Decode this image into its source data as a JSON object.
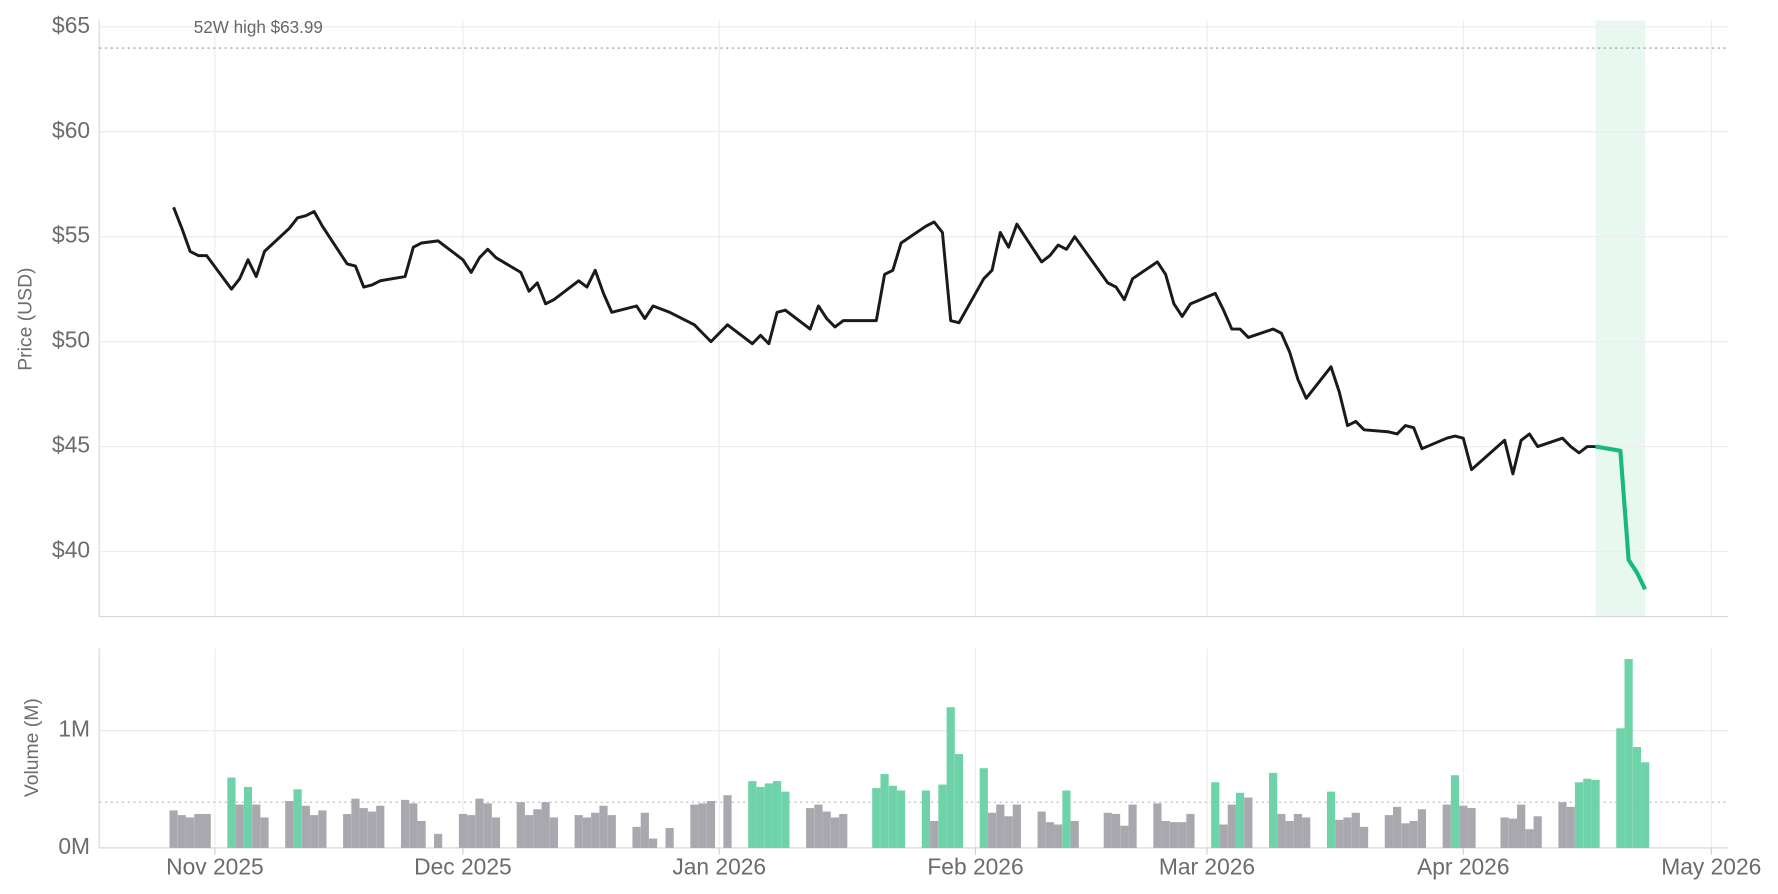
{
  "chart_data": [
    {
      "type": "line",
      "y_label": "Price (USD)",
      "xlim": [
        "2025-10-18",
        "2026-05-03"
      ],
      "ylim": [
        36.9,
        65.3
      ],
      "yticks": [
        {
          "value": 40,
          "label": "$40"
        },
        {
          "value": 45,
          "label": "$45"
        },
        {
          "value": 50,
          "label": "$50"
        },
        {
          "value": 55,
          "label": "$55"
        },
        {
          "value": 60,
          "label": "$60"
        },
        {
          "value": 65,
          "label": "$65"
        }
      ],
      "grid": true,
      "reference_line": {
        "value": 63.99,
        "label": "52W high $63.99"
      },
      "highlight": {
        "start": "2026-04-17",
        "end": "2026-04-23",
        "color": "#17b97f",
        "band_color": "#e9f7f1"
      },
      "x": [
        "2025-10-27",
        "2025-10-28",
        "2025-10-29",
        "2025-10-30",
        "2025-10-31",
        "2025-11-03",
        "2025-11-04",
        "2025-11-05",
        "2025-11-06",
        "2025-11-07",
        "2025-11-10",
        "2025-11-11",
        "2025-11-12",
        "2025-11-13",
        "2025-11-14",
        "2025-11-17",
        "2025-11-18",
        "2025-11-19",
        "2025-11-20",
        "2025-11-21",
        "2025-11-24",
        "2025-11-25",
        "2025-11-26",
        "2025-11-28",
        "2025-12-01",
        "2025-12-02",
        "2025-12-03",
        "2025-12-04",
        "2025-12-05",
        "2025-12-08",
        "2025-12-09",
        "2025-12-10",
        "2025-12-11",
        "2025-12-12",
        "2025-12-15",
        "2025-12-16",
        "2025-12-17",
        "2025-12-18",
        "2025-12-19",
        "2025-12-22",
        "2025-12-23",
        "2025-12-24",
        "2025-12-26",
        "2025-12-29",
        "2025-12-30",
        "2025-12-31",
        "2026-01-02",
        "2026-01-05",
        "2026-01-06",
        "2026-01-07",
        "2026-01-08",
        "2026-01-09",
        "2026-01-12",
        "2026-01-13",
        "2026-01-14",
        "2026-01-15",
        "2026-01-16",
        "2026-01-20",
        "2026-01-21",
        "2026-01-22",
        "2026-01-23",
        "2026-01-26",
        "2026-01-27",
        "2026-01-28",
        "2026-01-29",
        "2026-01-30",
        "2026-02-02",
        "2026-02-03",
        "2026-02-04",
        "2026-02-05",
        "2026-02-06",
        "2026-02-09",
        "2026-02-10",
        "2026-02-11",
        "2026-02-12",
        "2026-02-13",
        "2026-02-17",
        "2026-02-18",
        "2026-02-19",
        "2026-02-20",
        "2026-02-23",
        "2026-02-24",
        "2026-02-25",
        "2026-02-26",
        "2026-02-27",
        "2026-03-02",
        "2026-03-03",
        "2026-03-04",
        "2026-03-05",
        "2026-03-06",
        "2026-03-09",
        "2026-03-10",
        "2026-03-11",
        "2026-03-12",
        "2026-03-13",
        "2026-03-16",
        "2026-03-17",
        "2026-03-18",
        "2026-03-19",
        "2026-03-20",
        "2026-03-23",
        "2026-03-24",
        "2026-03-25",
        "2026-03-26",
        "2026-03-27",
        "2026-03-30",
        "2026-03-31",
        "2026-04-01",
        "2026-04-02",
        "2026-04-06",
        "2026-04-07",
        "2026-04-08",
        "2026-04-09",
        "2026-04-10",
        "2026-04-13",
        "2026-04-14",
        "2026-04-15",
        "2026-04-16",
        "2026-04-17",
        "2026-04-20",
        "2026-04-21",
        "2026-04-22",
        "2026-04-23"
      ],
      "color": "#1a1a1a",
      "values": [
        56.4,
        55.4,
        54.3,
        54.1,
        54.1,
        52.5,
        53.0,
        53.9,
        53.1,
        54.3,
        55.4,
        55.9,
        56.0,
        56.2,
        55.5,
        53.7,
        53.6,
        52.6,
        52.7,
        52.9,
        53.1,
        54.5,
        54.7,
        54.8,
        53.9,
        53.3,
        54.0,
        54.4,
        54.0,
        53.3,
        52.4,
        52.8,
        51.8,
        52.0,
        52.9,
        52.6,
        53.4,
        52.3,
        51.4,
        51.7,
        51.1,
        51.7,
        51.4,
        50.8,
        50.4,
        50.0,
        50.8,
        49.9,
        50.3,
        49.9,
        51.4,
        51.5,
        50.6,
        51.7,
        51.1,
        50.7,
        51.0,
        51.0,
        53.2,
        53.4,
        54.7,
        55.5,
        55.7,
        55.2,
        51.0,
        50.9,
        53.0,
        53.4,
        55.2,
        54.5,
        55.6,
        53.8,
        54.1,
        54.6,
        54.4,
        55.0,
        52.8,
        52.6,
        52.0,
        53.0,
        53.8,
        53.2,
        51.8,
        51.2,
        51.8,
        52.3,
        51.5,
        50.6,
        50.6,
        50.2,
        50.6,
        50.4,
        49.5,
        48.2,
        47.3,
        48.8,
        47.6,
        46.0,
        46.2,
        45.8,
        45.7,
        45.6,
        46.0,
        45.9,
        44.9,
        45.4,
        45.5,
        45.4,
        43.9,
        45.3,
        43.7,
        45.3,
        45.6,
        45.0,
        45.4,
        45.0,
        44.7,
        45.0,
        45.0,
        44.8,
        39.6,
        39.0,
        38.2
      ]
    },
    {
      "type": "bar",
      "y_label": "Volume (M)",
      "ylim": [
        0,
        1.7
      ],
      "yticks": [
        {
          "value": 0,
          "label": "0M"
        },
        {
          "value": 1,
          "label": "1M"
        }
      ],
      "xticks": [
        {
          "value": "2025-11-01",
          "label": "Nov 2025"
        },
        {
          "value": "2025-12-01",
          "label": "Dec 2025"
        },
        {
          "value": "2026-01-01",
          "label": "Jan 2026"
        },
        {
          "value": "2026-02-01",
          "label": "Feb 2026"
        },
        {
          "value": "2026-03-01",
          "label": "Mar 2026"
        },
        {
          "value": "2026-04-01",
          "label": "Apr 2026"
        },
        {
          "value": "2026-05-01",
          "label": "May 2026"
        }
      ],
      "grid": true,
      "reference_line": 0.39,
      "values": [
        0.32,
        0.28,
        0.26,
        0.29,
        0.29,
        0.6,
        0.37,
        0.52,
        0.37,
        0.26,
        0.4,
        0.5,
        0.36,
        0.28,
        0.32,
        0.29,
        0.42,
        0.34,
        0.31,
        0.36,
        0.41,
        0.38,
        0.23,
        0.12,
        0.29,
        0.28,
        0.42,
        0.38,
        0.26,
        0.39,
        0.28,
        0.33,
        0.39,
        0.26,
        0.28,
        0.26,
        0.3,
        0.36,
        0.28,
        0.18,
        0.3,
        0.08,
        0.17,
        0.37,
        0.38,
        0.4,
        0.45,
        0.57,
        0.52,
        0.55,
        0.57,
        0.48,
        0.34,
        0.37,
        0.31,
        0.26,
        0.29,
        0.51,
        0.63,
        0.53,
        0.49,
        0.49,
        0.23,
        0.54,
        1.2,
        0.8,
        0.68,
        0.3,
        0.37,
        0.27,
        0.37,
        0.31,
        0.22,
        0.2,
        0.49,
        0.23,
        0.3,
        0.29,
        0.19,
        0.37,
        0.38,
        0.23,
        0.22,
        0.22,
        0.29,
        0.56,
        0.2,
        0.37,
        0.47,
        0.43,
        0.64,
        0.29,
        0.23,
        0.29,
        0.26,
        0.48,
        0.24,
        0.26,
        0.3,
        0.18,
        0.28,
        0.35,
        0.21,
        0.23,
        0.33,
        0.37,
        0.62,
        0.36,
        0.34,
        0.26,
        0.25,
        0.37,
        0.16,
        0.27,
        0.39,
        0.35,
        0.56,
        0.59,
        0.58,
        1.02,
        1.61,
        0.86,
        0.73
      ],
      "colors": [
        "#a9a8ae",
        "#a9a8ae",
        "#a9a8ae",
        "#a9a8ae",
        "#a9a8ae",
        "#6fd3aa",
        "#a9a8ae",
        "#6fd3aa",
        "#a9a8ae",
        "#a9a8ae",
        "#a9a8ae",
        "#6fd3aa",
        "#a9a8ae",
        "#a9a8ae",
        "#a9a8ae",
        "#a9a8ae",
        "#a9a8ae",
        "#a9a8ae",
        "#a9a8ae",
        "#a9a8ae",
        "#a9a8ae",
        "#a9a8ae",
        "#a9a8ae",
        "#a9a8ae",
        "#a9a8ae",
        "#a9a8ae",
        "#a9a8ae",
        "#a9a8ae",
        "#a9a8ae",
        "#a9a8ae",
        "#a9a8ae",
        "#a9a8ae",
        "#a9a8ae",
        "#a9a8ae",
        "#a9a8ae",
        "#a9a8ae",
        "#a9a8ae",
        "#a9a8ae",
        "#a9a8ae",
        "#a9a8ae",
        "#a9a8ae",
        "#a9a8ae",
        "#a9a8ae",
        "#a9a8ae",
        "#a9a8ae",
        "#a9a8ae",
        "#a9a8ae",
        "#6fd3aa",
        "#6fd3aa",
        "#6fd3aa",
        "#6fd3aa",
        "#6fd3aa",
        "#a9a8ae",
        "#a9a8ae",
        "#a9a8ae",
        "#a9a8ae",
        "#a9a8ae",
        "#6fd3aa",
        "#6fd3aa",
        "#6fd3aa",
        "#6fd3aa",
        "#6fd3aa",
        "#a9a8ae",
        "#6fd3aa",
        "#6fd3aa",
        "#6fd3aa",
        "#6fd3aa",
        "#a9a8ae",
        "#a9a8ae",
        "#a9a8ae",
        "#a9a8ae",
        "#a9a8ae",
        "#a9a8ae",
        "#a9a8ae",
        "#6fd3aa",
        "#a9a8ae",
        "#a9a8ae",
        "#a9a8ae",
        "#a9a8ae",
        "#a9a8ae",
        "#a9a8ae",
        "#a9a8ae",
        "#a9a8ae",
        "#a9a8ae",
        "#a9a8ae",
        "#6fd3aa",
        "#a9a8ae",
        "#a9a8ae",
        "#6fd3aa",
        "#a9a8ae",
        "#6fd3aa",
        "#a9a8ae",
        "#a9a8ae",
        "#a9a8ae",
        "#a9a8ae",
        "#6fd3aa",
        "#a9a8ae",
        "#a9a8ae",
        "#a9a8ae",
        "#a9a8ae",
        "#a9a8ae",
        "#a9a8ae",
        "#a9a8ae",
        "#a9a8ae",
        "#a9a8ae",
        "#a9a8ae",
        "#6fd3aa",
        "#a9a8ae",
        "#a9a8ae",
        "#a9a8ae",
        "#a9a8ae",
        "#a9a8ae",
        "#a9a8ae",
        "#a9a8ae",
        "#a9a8ae",
        "#a9a8ae",
        "#6fd3aa",
        "#6fd3aa",
        "#6fd3aa",
        "#6fd3aa",
        "#6fd3aa",
        "#6fd3aa",
        "#6fd3aa"
      ]
    }
  ]
}
